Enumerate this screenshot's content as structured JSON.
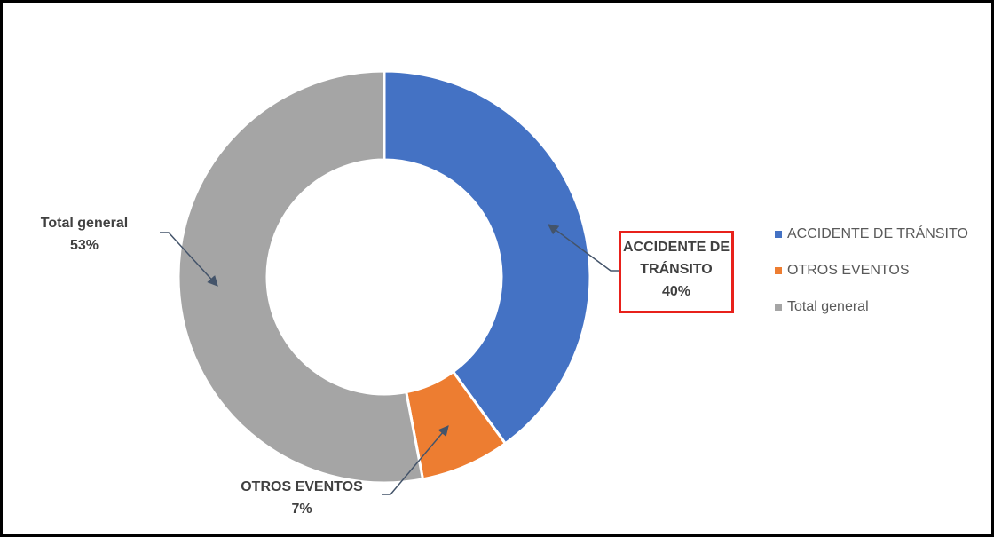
{
  "chart_data": {
    "type": "donut",
    "categories": [
      "ACCIDENTE DE TRÁNSITO",
      "OTROS EVENTOS",
      "Total general"
    ],
    "values": [
      40,
      7,
      53
    ],
    "value_labels": [
      "40%",
      "7%",
      "53%"
    ],
    "colors": [
      "#4472c4",
      "#ed7d31",
      "#a5a5a5"
    ],
    "legend": "right"
  }
}
